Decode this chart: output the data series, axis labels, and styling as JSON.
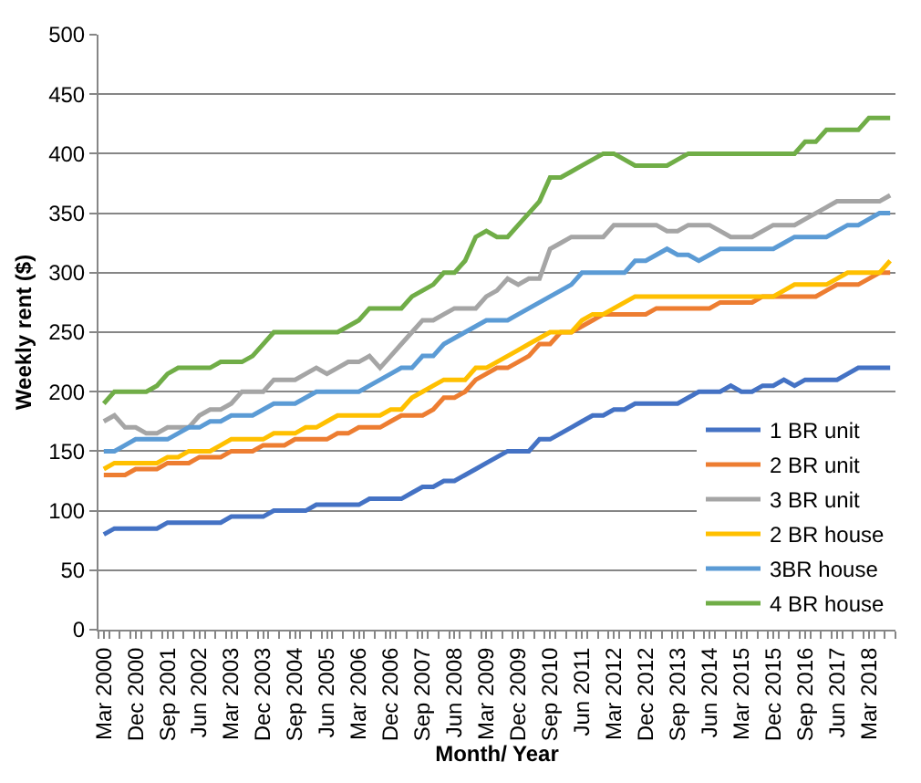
{
  "chart_data": {
    "type": "line",
    "xlabel": "Month/ Year",
    "ylabel": "Weekly rent ($)",
    "categories": [
      "Mar 2000",
      null,
      null,
      "Dec 2000",
      null,
      null,
      "Sep 2001",
      null,
      null,
      "Jun 2002",
      null,
      null,
      "Mar 2003",
      null,
      null,
      "Dec 2003",
      null,
      null,
      "Sep 2004",
      null,
      null,
      "Jun 2005",
      null,
      null,
      "Mar 2006",
      null,
      null,
      "Dec 2006",
      null,
      null,
      "Sep 2007",
      null,
      null,
      "Jun 2008",
      null,
      null,
      "Mar 2009",
      null,
      null,
      "Dec 2009",
      null,
      null,
      "Sep 2010",
      null,
      null,
      "Jun 2011",
      null,
      null,
      "Mar 2012",
      null,
      null,
      "Dec 2012",
      null,
      null,
      "Sep 2013",
      null,
      null,
      "Jun 2014",
      null,
      null,
      "Mar 2015",
      null,
      null,
      "Dec 2015",
      null,
      null,
      "Sep 2016",
      null,
      null,
      "Jun 2017",
      null,
      null,
      "Mar 2018",
      null,
      null
    ],
    "series": [
      {
        "name": "1 BR unit",
        "color": "#4472c4",
        "values": [
          80,
          85,
          85,
          85,
          85,
          85,
          90,
          90,
          90,
          90,
          90,
          90,
          95,
          95,
          95,
          95,
          100,
          100,
          100,
          100,
          105,
          105,
          105,
          105,
          105,
          110,
          110,
          110,
          110,
          115,
          120,
          120,
          125,
          125,
          130,
          135,
          140,
          145,
          150,
          150,
          150,
          160,
          160,
          165,
          170,
          175,
          180,
          180,
          185,
          185,
          190,
          190,
          190,
          190,
          190,
          195,
          200,
          200,
          200,
          205,
          200,
          200,
          205,
          205,
          210,
          205,
          210,
          210,
          210,
          210,
          215,
          220,
          220,
          220,
          220
        ]
      },
      {
        "name": "2 BR unit",
        "color": "#ed7d31",
        "values": [
          130,
          130,
          130,
          135,
          135,
          135,
          140,
          140,
          140,
          145,
          145,
          145,
          150,
          150,
          150,
          155,
          155,
          155,
          160,
          160,
          160,
          160,
          165,
          165,
          170,
          170,
          170,
          175,
          180,
          180,
          180,
          185,
          195,
          195,
          200,
          210,
          215,
          220,
          220,
          225,
          230,
          240,
          240,
          250,
          250,
          255,
          260,
          265,
          265,
          265,
          265,
          265,
          270,
          270,
          270,
          270,
          270,
          270,
          275,
          275,
          275,
          275,
          280,
          280,
          280,
          280,
          280,
          280,
          285,
          290,
          290,
          290,
          295,
          300,
          300
        ]
      },
      {
        "name": "3 BR unit",
        "color": "#a5a5a5",
        "values": [
          175,
          180,
          170,
          170,
          165,
          165,
          170,
          170,
          170,
          180,
          185,
          185,
          190,
          200,
          200,
          200,
          210,
          210,
          210,
          215,
          220,
          215,
          220,
          225,
          225,
          230,
          220,
          230,
          240,
          250,
          260,
          260,
          265,
          270,
          270,
          270,
          280,
          285,
          295,
          290,
          295,
          295,
          320,
          325,
          330,
          330,
          330,
          330,
          340,
          340,
          340,
          340,
          340,
          335,
          335,
          340,
          340,
          340,
          335,
          330,
          330,
          330,
          335,
          340,
          340,
          340,
          345,
          350,
          355,
          360,
          360,
          360,
          360,
          360,
          365
        ]
      },
      {
        "name": "2 BR house",
        "color": "#ffc000",
        "values": [
          135,
          140,
          140,
          140,
          140,
          140,
          145,
          145,
          150,
          150,
          150,
          155,
          160,
          160,
          160,
          160,
          165,
          165,
          165,
          170,
          170,
          175,
          180,
          180,
          180,
          180,
          180,
          185,
          185,
          195,
          200,
          205,
          210,
          210,
          210,
          220,
          220,
          225,
          230,
          235,
          240,
          245,
          250,
          250,
          250,
          260,
          265,
          265,
          270,
          275,
          280,
          280,
          280,
          280,
          280,
          280,
          280,
          280,
          280,
          280,
          280,
          280,
          280,
          280,
          285,
          290,
          290,
          290,
          290,
          295,
          300,
          300,
          300,
          300,
          310
        ]
      },
      {
        "name": "3BR house",
        "color": "#5b9bd5",
        "values": [
          150,
          150,
          155,
          160,
          160,
          160,
          160,
          165,
          170,
          170,
          175,
          175,
          180,
          180,
          180,
          185,
          190,
          190,
          190,
          195,
          200,
          200,
          200,
          200,
          200,
          205,
          210,
          215,
          220,
          220,
          230,
          230,
          240,
          245,
          250,
          255,
          260,
          260,
          260,
          265,
          270,
          275,
          280,
          285,
          290,
          300,
          300,
          300,
          300,
          300,
          310,
          310,
          315,
          320,
          315,
          315,
          310,
          315,
          320,
          320,
          320,
          320,
          320,
          320,
          325,
          330,
          330,
          330,
          330,
          335,
          340,
          340,
          345,
          350,
          350
        ]
      },
      {
        "name": "4 BR house",
        "color": "#70ad47",
        "values": [
          190,
          200,
          200,
          200,
          200,
          205,
          215,
          220,
          220,
          220,
          220,
          225,
          225,
          225,
          230,
          240,
          250,
          250,
          250,
          250,
          250,
          250,
          250,
          255,
          260,
          270,
          270,
          270,
          270,
          280,
          285,
          290,
          300,
          300,
          310,
          330,
          335,
          330,
          330,
          340,
          350,
          360,
          380,
          380,
          385,
          390,
          395,
          400,
          400,
          395,
          390,
          390,
          390,
          390,
          395,
          400,
          400,
          400,
          400,
          400,
          400,
          400,
          400,
          400,
          400,
          400,
          410,
          410,
          420,
          420,
          420,
          420,
          430,
          430,
          430
        ]
      }
    ],
    "ylim": [
      0,
      500
    ],
    "yticks": [
      0,
      50,
      100,
      150,
      200,
      250,
      300,
      350,
      400,
      450,
      500
    ],
    "grid": "y",
    "legend": "bottom right",
    "line_style": "solid"
  }
}
